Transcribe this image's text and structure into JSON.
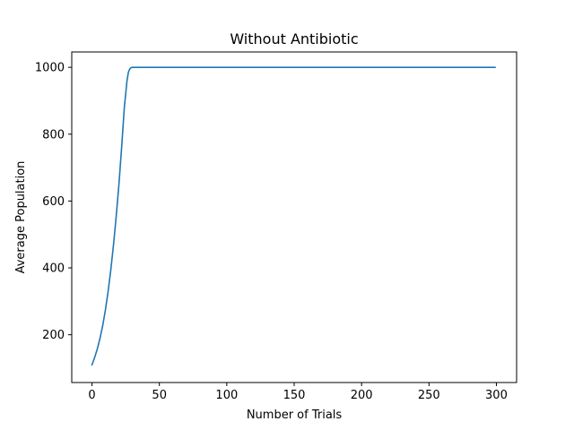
{
  "chart_data": {
    "type": "line",
    "title": "Without Antibiotic",
    "xlabel": "Number of Trials",
    "ylabel": "Average Population",
    "xlim": [
      -15,
      315
    ],
    "ylim": [
      57,
      1046
    ],
    "xticks": [
      0,
      50,
      100,
      150,
      200,
      250,
      300
    ],
    "yticks": [
      200,
      400,
      600,
      800,
      1000
    ],
    "grid": false,
    "series": [
      {
        "color": "#1f77b4",
        "x": [
          0,
          2,
          4,
          6,
          8,
          10,
          12,
          14,
          16,
          18,
          20,
          22,
          24,
          26,
          27,
          28,
          29,
          30,
          31,
          32,
          35,
          40,
          50,
          100,
          150,
          200,
          250,
          299
        ],
        "y": [
          110,
          132,
          158,
          190,
          228,
          275,
          330,
          395,
          470,
          555,
          650,
          760,
          880,
          960,
          985,
          995,
          999,
          1000,
          1000,
          1000,
          1000,
          1000,
          1000,
          1000,
          1000,
          1000,
          1000,
          1000
        ]
      }
    ]
  }
}
